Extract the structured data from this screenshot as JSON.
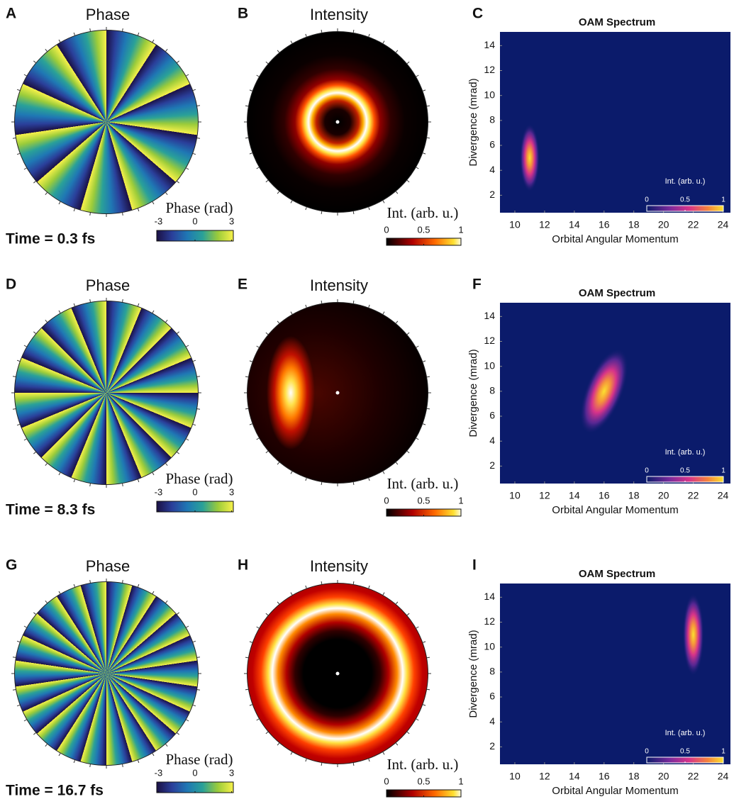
{
  "chart_data": [
    {
      "type": "phase",
      "panel_label": "A",
      "title": "Phase",
      "time_label": "Time = 0.3 fs",
      "colorbar": {
        "label": "Phase (rad)",
        "ticks": [
          -3,
          0,
          3
        ],
        "lim": [
          -3.14,
          3.14
        ]
      }
    },
    {
      "type": "intensity",
      "panel_label": "B",
      "title": "Intensity",
      "colorbar": {
        "label": "Int. (arb. u.)",
        "ticks": [
          0,
          0.5,
          1
        ],
        "lim": [
          0,
          1
        ]
      }
    },
    {
      "type": "heatmap",
      "panel_label": "C",
      "title": "OAM Spectrum",
      "xlabel": "Orbital Angular Momentum",
      "ylabel": "Divergence (mrad)",
      "xlim": [
        9,
        24.5
      ],
      "ylim": [
        0.6,
        15.1
      ],
      "xticks": [
        10,
        12,
        14,
        16,
        18,
        20,
        22,
        24
      ],
      "yticks": [
        2,
        4,
        6,
        8,
        10,
        12,
        14
      ],
      "peak": {
        "x": 11,
        "y": 5
      },
      "colorbar": {
        "label": "Int. (arb. u.)",
        "ticks": [
          0,
          0.5,
          1
        ],
        "lim": [
          0,
          1
        ]
      }
    },
    {
      "type": "phase",
      "panel_label": "D",
      "title": "Phase",
      "time_label": "Time = 8.3 fs",
      "colorbar": {
        "label": "Phase (rad)",
        "ticks": [
          -3,
          0,
          3
        ],
        "lim": [
          -3.14,
          3.14
        ]
      }
    },
    {
      "type": "intensity",
      "panel_label": "E",
      "title": "Intensity",
      "colorbar": {
        "label": "Int. (arb. u.)",
        "ticks": [
          0,
          0.5,
          1
        ],
        "lim": [
          0,
          1
        ]
      }
    },
    {
      "type": "heatmap",
      "panel_label": "F",
      "title": "OAM Spectrum",
      "xlabel": "Orbital Angular Momentum",
      "ylabel": "Divergence (mrad)",
      "xlim": [
        9,
        24.5
      ],
      "ylim": [
        0.6,
        15.1
      ],
      "xticks": [
        10,
        12,
        14,
        16,
        18,
        20,
        22,
        24
      ],
      "yticks": [
        2,
        4,
        6,
        8,
        10,
        12,
        14
      ],
      "peak": {
        "x": 16,
        "y": 8
      },
      "colorbar": {
        "label": "Int. (arb. u.)",
        "ticks": [
          0,
          0.5,
          1
        ],
        "lim": [
          0,
          1
        ]
      }
    },
    {
      "type": "phase",
      "panel_label": "G",
      "title": "Phase",
      "time_label": "Time = 16.7 fs",
      "colorbar": {
        "label": "Phase (rad)",
        "ticks": [
          -3,
          0,
          3
        ],
        "lim": [
          -3.14,
          3.14
        ]
      }
    },
    {
      "type": "intensity",
      "panel_label": "H",
      "title": "Intensity",
      "colorbar": {
        "label": "Int. (arb. u.)",
        "ticks": [
          0,
          0.5,
          1
        ],
        "lim": [
          0,
          1
        ]
      }
    },
    {
      "type": "heatmap",
      "panel_label": "I",
      "title": "OAM Spectrum",
      "xlabel": "Orbital Angular Momentum",
      "ylabel": "Divergence (mrad)",
      "xlim": [
        9,
        24.5
      ],
      "ylim": [
        0.6,
        15.1
      ],
      "xticks": [
        10,
        12,
        14,
        16,
        18,
        20,
        22,
        24
      ],
      "yticks": [
        2,
        4,
        6,
        8,
        10,
        12,
        14
      ],
      "peak": {
        "x": 22,
        "y": 11
      },
      "colorbar": {
        "label": "Int. (arb. u.)",
        "ticks": [
          0,
          0.5,
          1
        ],
        "lim": [
          0,
          1
        ]
      }
    }
  ]
}
